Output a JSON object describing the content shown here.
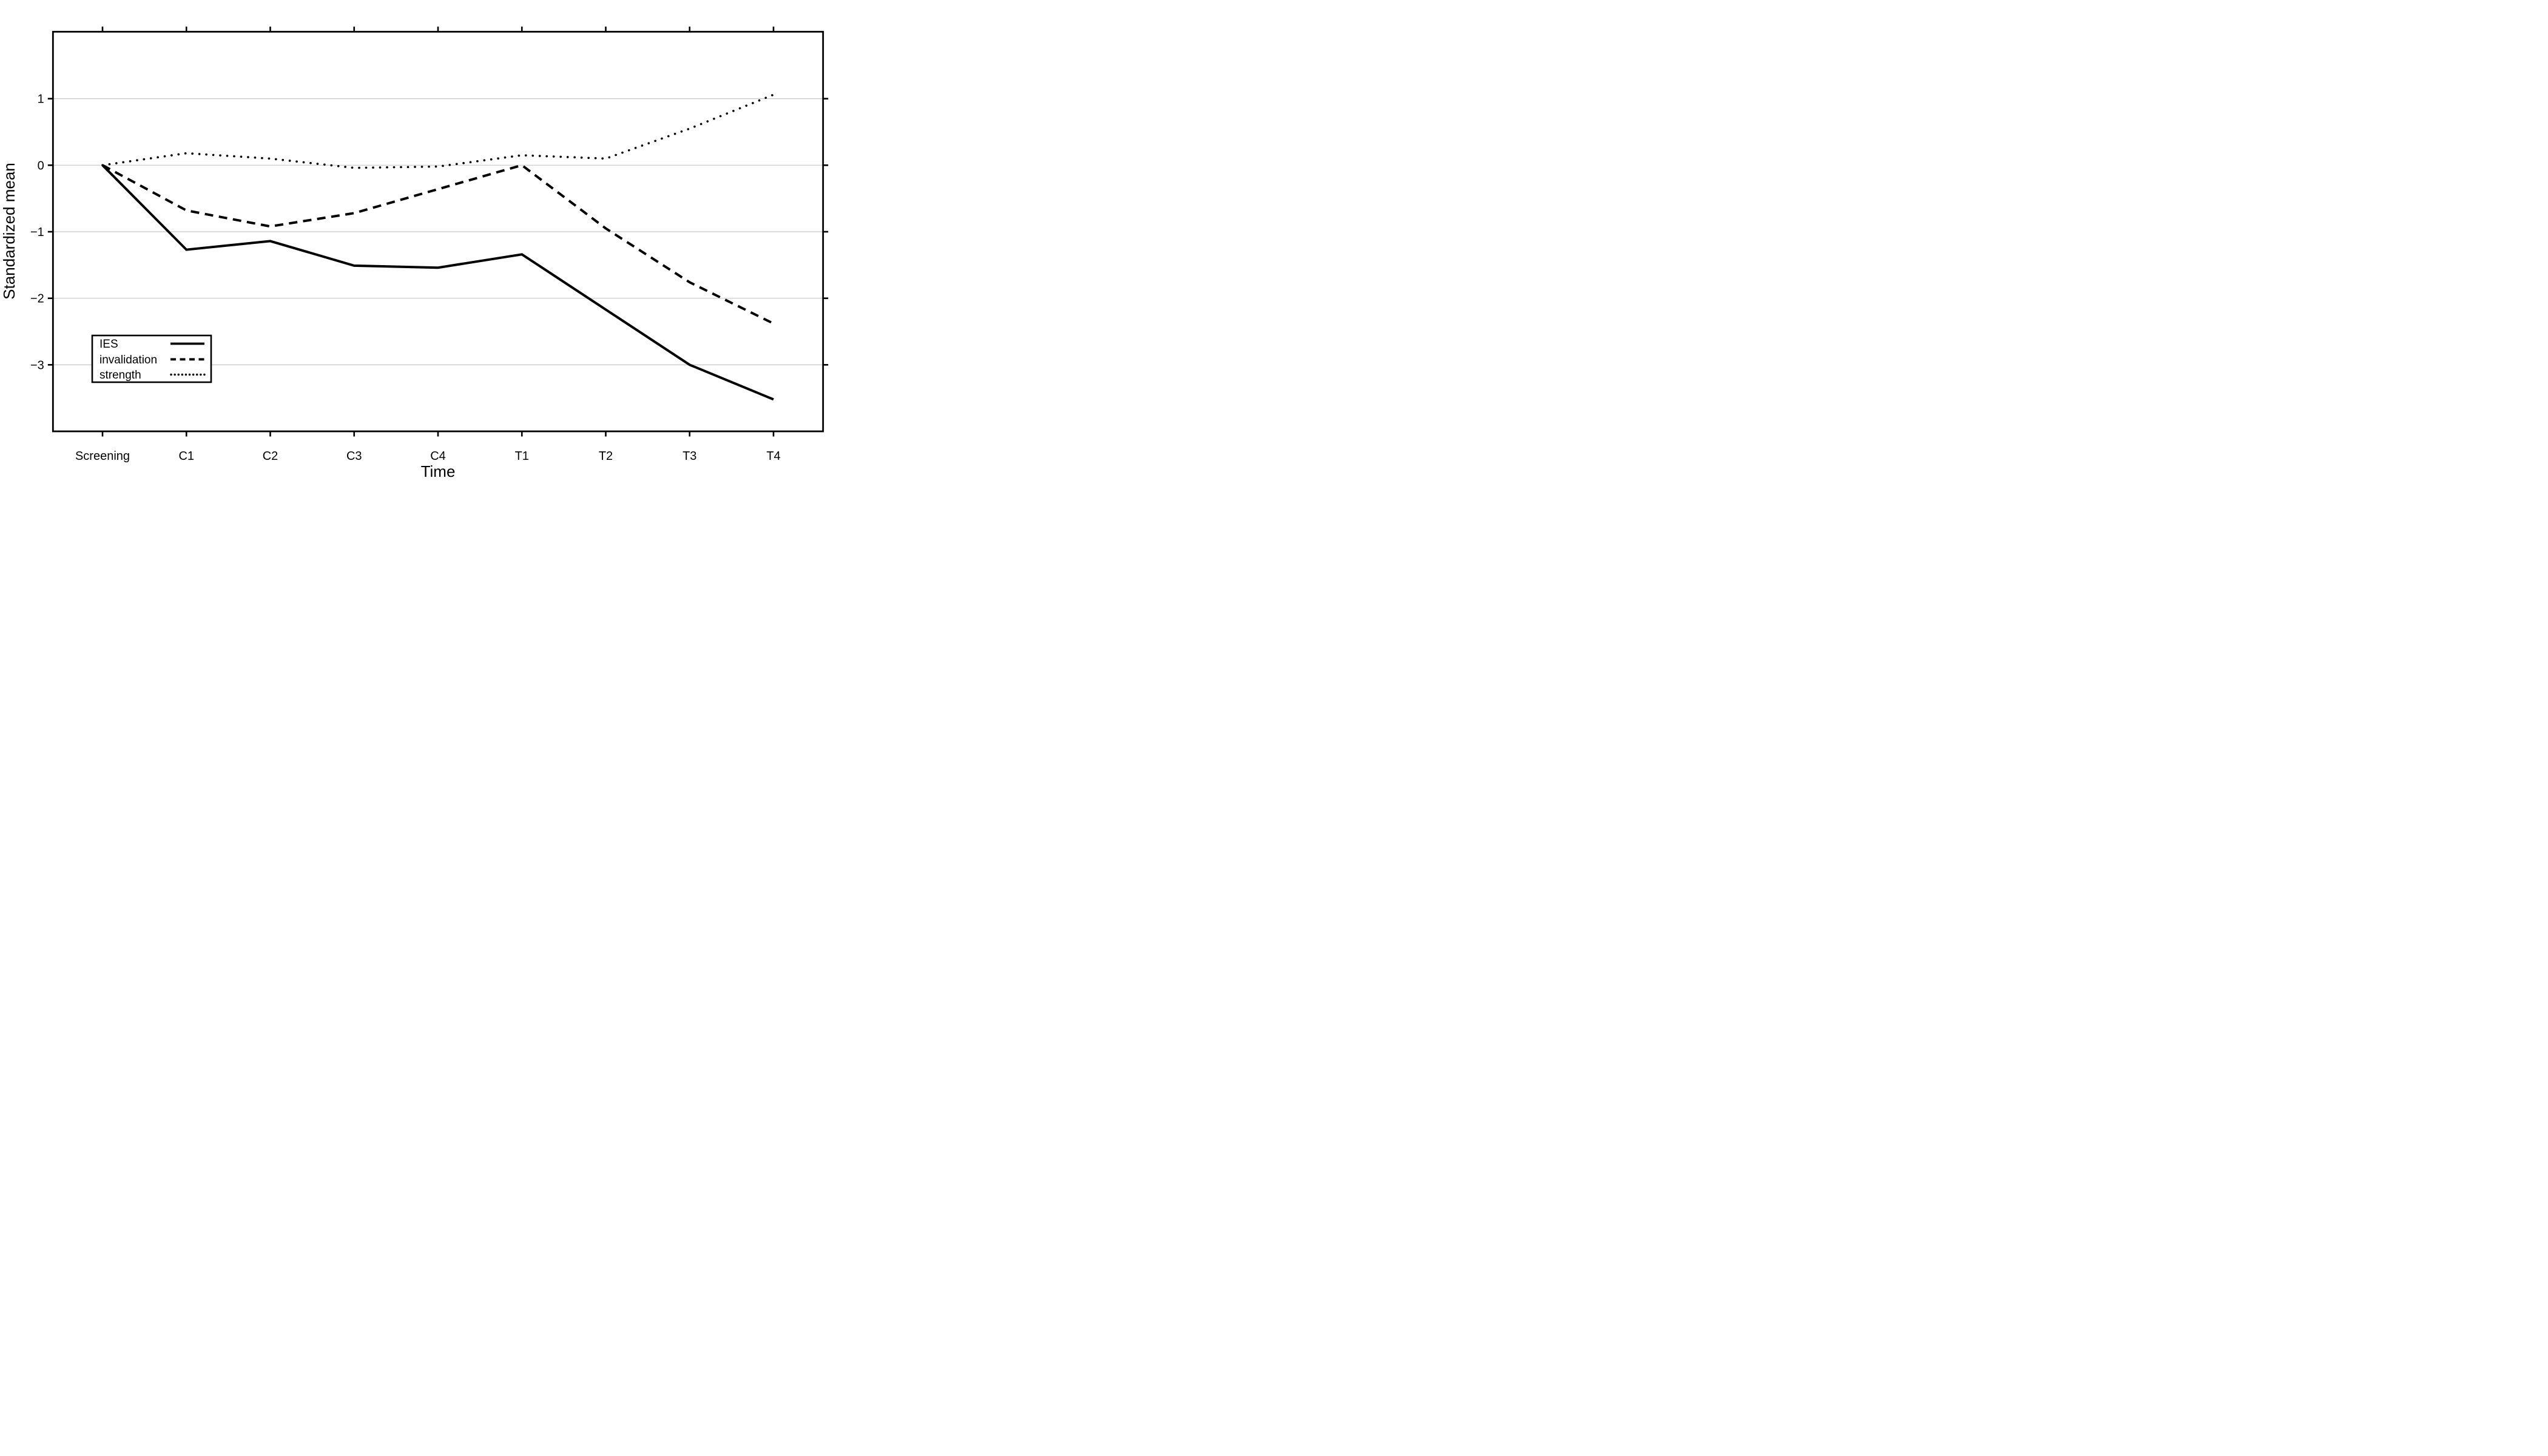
{
  "figure": {
    "background": "#ffffff",
    "axis_color": "#000000",
    "gridline_color": "#c8c8c8"
  },
  "chart_data": {
    "type": "line",
    "title": "",
    "xlabel": "Time",
    "ylabel": "Standardized mean",
    "categories": [
      "Screening",
      "C1",
      "C2",
      "C3",
      "C4",
      "T1",
      "T2",
      "T3",
      "T4"
    ],
    "series": [
      {
        "name": "IES",
        "line_style": "solid",
        "color": "#000000",
        "values": [
          0,
          -1.27,
          -1.14,
          -1.51,
          -1.54,
          -1.34,
          -2.17,
          -3.0,
          -3.52
        ]
      },
      {
        "name": "invalidation",
        "line_style": "dashed",
        "color": "#000000",
        "values": [
          0,
          -0.68,
          -0.92,
          -0.72,
          -0.36,
          0.0,
          -0.95,
          -1.76,
          -2.38
        ]
      },
      {
        "name": "strength",
        "line_style": "dotted",
        "color": "#000000",
        "values": [
          0,
          0.18,
          0.1,
          -0.04,
          -0.02,
          0.15,
          0.1,
          0.55,
          1.06
        ]
      }
    ],
    "ylim": [
      -4,
      2
    ],
    "yticks": [
      {
        "v": 1,
        "label": "1"
      },
      {
        "v": 0,
        "label": "0"
      },
      {
        "v": -1,
        "label": "−1"
      },
      {
        "v": -2,
        "label": "−2"
      },
      {
        "v": -3,
        "label": "−3"
      }
    ],
    "grid": "horizontal gridlines at integer y values",
    "legend_position": "lower-left"
  }
}
